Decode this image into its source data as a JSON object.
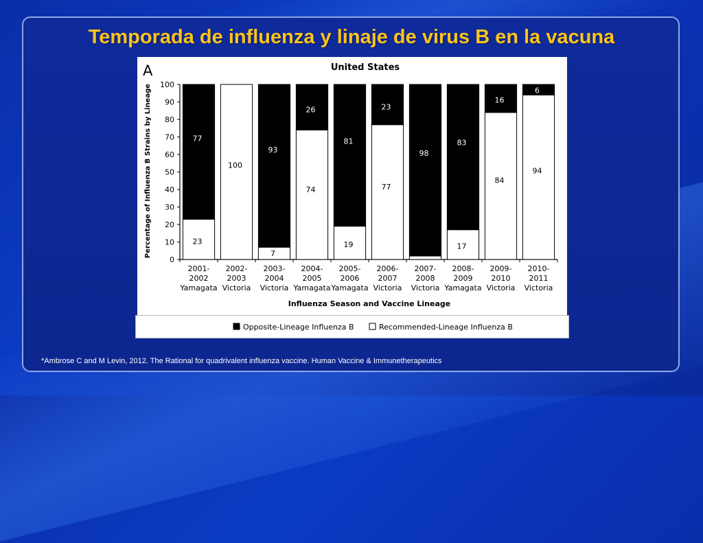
{
  "slide": {
    "title": "Temporada de influenza y linaje de virus B en la vacuna",
    "footnote": "*Ambrose C and M Levin, 2012. The Rational for quadrivalent influenza vaccine. Human Vaccine & Immunetherapeutics"
  },
  "colors": {
    "title": "#ffc41a",
    "opposite": "#000000",
    "recommended": "#ffffff"
  },
  "chart_data": {
    "type": "bar",
    "stacked": true,
    "panel_label": "A",
    "title": "United States",
    "xlabel": "Influenza Season and Vaccine Lineage",
    "ylabel": "Percentage of Influenza B Strains by Lineage",
    "ylim": [
      0,
      100
    ],
    "yticks": [
      0,
      10,
      20,
      30,
      40,
      50,
      60,
      70,
      80,
      90,
      100
    ],
    "categories": [
      [
        "2001-",
        "2002",
        "Yamagata"
      ],
      [
        "2002-",
        "2003",
        "Victoria"
      ],
      [
        "2003-",
        "2004",
        "Victoria"
      ],
      [
        "2004-",
        "2005",
        "Yamagata"
      ],
      [
        "2005-",
        "2006",
        "Yamagata"
      ],
      [
        "2006-",
        "2007",
        "Victoria"
      ],
      [
        "2007-",
        "2008",
        "Victoria"
      ],
      [
        "2008-",
        "2009",
        "Yamagata"
      ],
      [
        "2009-",
        "2010",
        "Victoria"
      ],
      [
        "2010-",
        "2011",
        "Victoria"
      ]
    ],
    "series": [
      {
        "name": "Recommended-Lineage Influenza B",
        "values": [
          23,
          100,
          7,
          74,
          19,
          77,
          2,
          17,
          84,
          94
        ]
      },
      {
        "name": "Opposite-Lineage Influenza B",
        "values": [
          77,
          0,
          93,
          26,
          81,
          23,
          98,
          83,
          16,
          6
        ]
      }
    ],
    "legend": {
      "position": "bottom",
      "items": [
        "Opposite-Lineage Influenza B",
        "Recommended-Lineage Influenza B"
      ]
    }
  }
}
